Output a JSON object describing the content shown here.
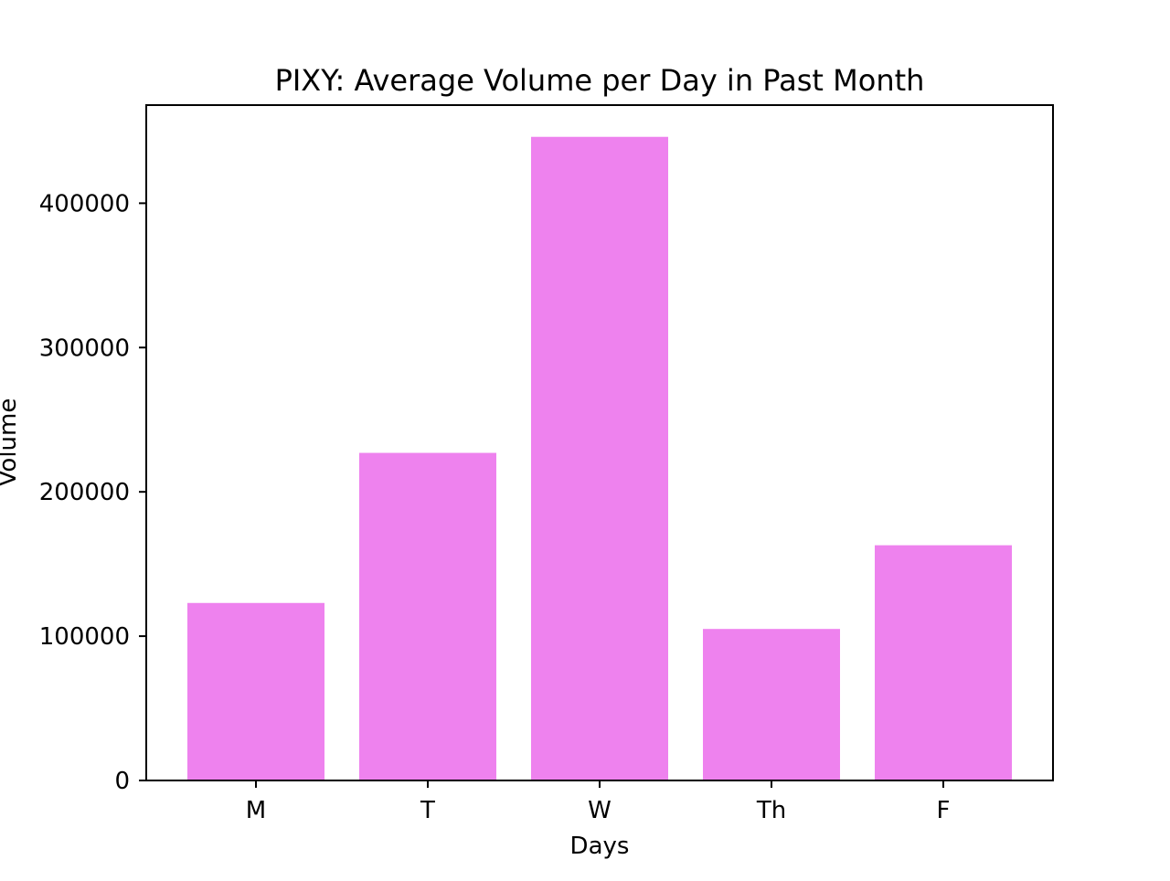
{
  "chart_data": {
    "type": "bar",
    "title": "PIXY: Average Volume per Day in Past Month",
    "xlabel": "Days",
    "ylabel": "Volume",
    "categories": [
      "M",
      "T",
      "W",
      "Th",
      "F"
    ],
    "values": [
      123000,
      227000,
      446000,
      105000,
      163000
    ],
    "ylim": [
      0,
      468000
    ],
    "yticks": [
      0,
      100000,
      200000,
      300000,
      400000
    ],
    "ytick_labels": [
      "0",
      "100000",
      "200000",
      "300000",
      "400000"
    ],
    "grid": false,
    "legend": "none",
    "colors": {
      "bar": "#ee82ee",
      "axis": "#000000",
      "background": "#ffffff"
    }
  }
}
